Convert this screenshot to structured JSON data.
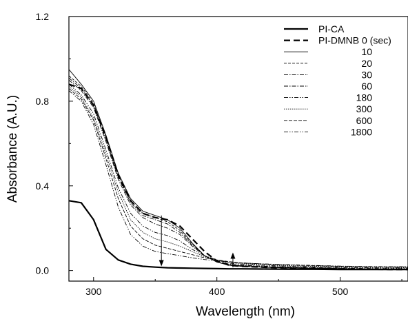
{
  "chart_data": {
    "type": "line",
    "title": "",
    "xlabel": "Wavelength (nm)",
    "ylabel": "Absorbance (A.U.)",
    "xlim": [
      280,
      555
    ],
    "ylim": [
      -0.05,
      1.2
    ],
    "x_ticks": [
      300,
      400,
      500
    ],
    "y_ticks": [
      0.0,
      0.4,
      0.8,
      1.2
    ],
    "x_tick_labels": [
      "300",
      "400",
      "500"
    ],
    "y_tick_labels": [
      "0.0",
      "0.4",
      "0.8",
      "1.2"
    ],
    "x_minor_ticks": [
      350,
      450,
      550
    ],
    "y_minor_ticks": [
      0.2,
      0.6,
      1.0
    ],
    "grid": false,
    "legend_position": "top-right",
    "x": [
      280,
      290,
      300,
      310,
      320,
      330,
      340,
      350,
      360,
      370,
      380,
      390,
      400,
      410,
      420,
      440,
      460,
      480,
      500,
      520,
      540,
      555
    ],
    "series": [
      {
        "name": "PI-CA",
        "style": "solid-thick",
        "values": [
          0.33,
          0.32,
          0.24,
          0.1,
          0.05,
          0.03,
          0.02,
          0.016,
          0.013,
          0.012,
          0.011,
          0.01,
          0.009,
          0.008,
          0.008,
          0.007,
          0.006,
          0.006,
          0.005,
          0.005,
          0.005,
          0.005
        ]
      },
      {
        "name": "PI-DMNB 0 (sec)",
        "style": "dashed-thick",
        "values": [
          0.88,
          0.86,
          0.78,
          0.63,
          0.45,
          0.33,
          0.27,
          0.25,
          0.24,
          0.21,
          0.15,
          0.09,
          0.045,
          0.025,
          0.02,
          0.015,
          0.012,
          0.01,
          0.008,
          0.006,
          0.005,
          0.005
        ]
      },
      {
        "name": "10",
        "style": "solid",
        "values": [
          0.95,
          0.88,
          0.8,
          0.64,
          0.46,
          0.34,
          0.28,
          0.26,
          0.24,
          0.2,
          0.13,
          0.07,
          0.04,
          0.025,
          0.02,
          0.015,
          0.012,
          0.01,
          0.008,
          0.006,
          0.005,
          0.005
        ]
      },
      {
        "name": "20",
        "style": "dashed",
        "values": [
          0.92,
          0.87,
          0.79,
          0.63,
          0.45,
          0.33,
          0.27,
          0.25,
          0.23,
          0.19,
          0.125,
          0.07,
          0.04,
          0.025,
          0.02,
          0.015,
          0.012,
          0.01,
          0.008,
          0.006,
          0.005,
          0.005
        ]
      },
      {
        "name": "30",
        "style": "dash-dot",
        "values": [
          0.91,
          0.86,
          0.78,
          0.62,
          0.44,
          0.32,
          0.26,
          0.24,
          0.22,
          0.18,
          0.12,
          0.07,
          0.04,
          0.028,
          0.022,
          0.017,
          0.014,
          0.012,
          0.01,
          0.008,
          0.007,
          0.007
        ]
      },
      {
        "name": "60",
        "style": "dash-dot",
        "values": [
          0.9,
          0.85,
          0.77,
          0.61,
          0.43,
          0.31,
          0.25,
          0.22,
          0.2,
          0.17,
          0.115,
          0.07,
          0.045,
          0.03,
          0.025,
          0.02,
          0.016,
          0.014,
          0.012,
          0.01,
          0.009,
          0.009
        ]
      },
      {
        "name": "180",
        "style": "dash-dot-dot",
        "values": [
          0.88,
          0.83,
          0.74,
          0.57,
          0.39,
          0.27,
          0.21,
          0.18,
          0.165,
          0.14,
          0.1,
          0.07,
          0.05,
          0.035,
          0.03,
          0.024,
          0.02,
          0.017,
          0.015,
          0.013,
          0.012,
          0.012
        ]
      },
      {
        "name": "300",
        "style": "dotted",
        "values": [
          0.87,
          0.82,
          0.72,
          0.55,
          0.37,
          0.24,
          0.18,
          0.15,
          0.135,
          0.115,
          0.09,
          0.065,
          0.05,
          0.04,
          0.033,
          0.027,
          0.023,
          0.02,
          0.018,
          0.016,
          0.015,
          0.015
        ]
      },
      {
        "name": "600",
        "style": "dash",
        "values": [
          0.86,
          0.81,
          0.71,
          0.53,
          0.34,
          0.21,
          0.15,
          0.12,
          0.105,
          0.09,
          0.075,
          0.06,
          0.05,
          0.042,
          0.036,
          0.03,
          0.026,
          0.023,
          0.02,
          0.018,
          0.017,
          0.017
        ]
      },
      {
        "name": "1800",
        "style": "dash-dot-dot",
        "values": [
          0.85,
          0.8,
          0.69,
          0.5,
          0.3,
          0.17,
          0.115,
          0.09,
          0.08,
          0.07,
          0.06,
          0.052,
          0.046,
          0.04,
          0.036,
          0.031,
          0.027,
          0.024,
          0.021,
          0.019,
          0.018,
          0.018
        ]
      }
    ],
    "annotations": [
      {
        "type": "arrow",
        "direction": "down",
        "x": 355,
        "from_y": 0.26,
        "to_y": 0.02
      },
      {
        "type": "arrow",
        "direction": "up",
        "x": 413,
        "from_y": 0.015,
        "to_y": 0.085
      }
    ]
  }
}
